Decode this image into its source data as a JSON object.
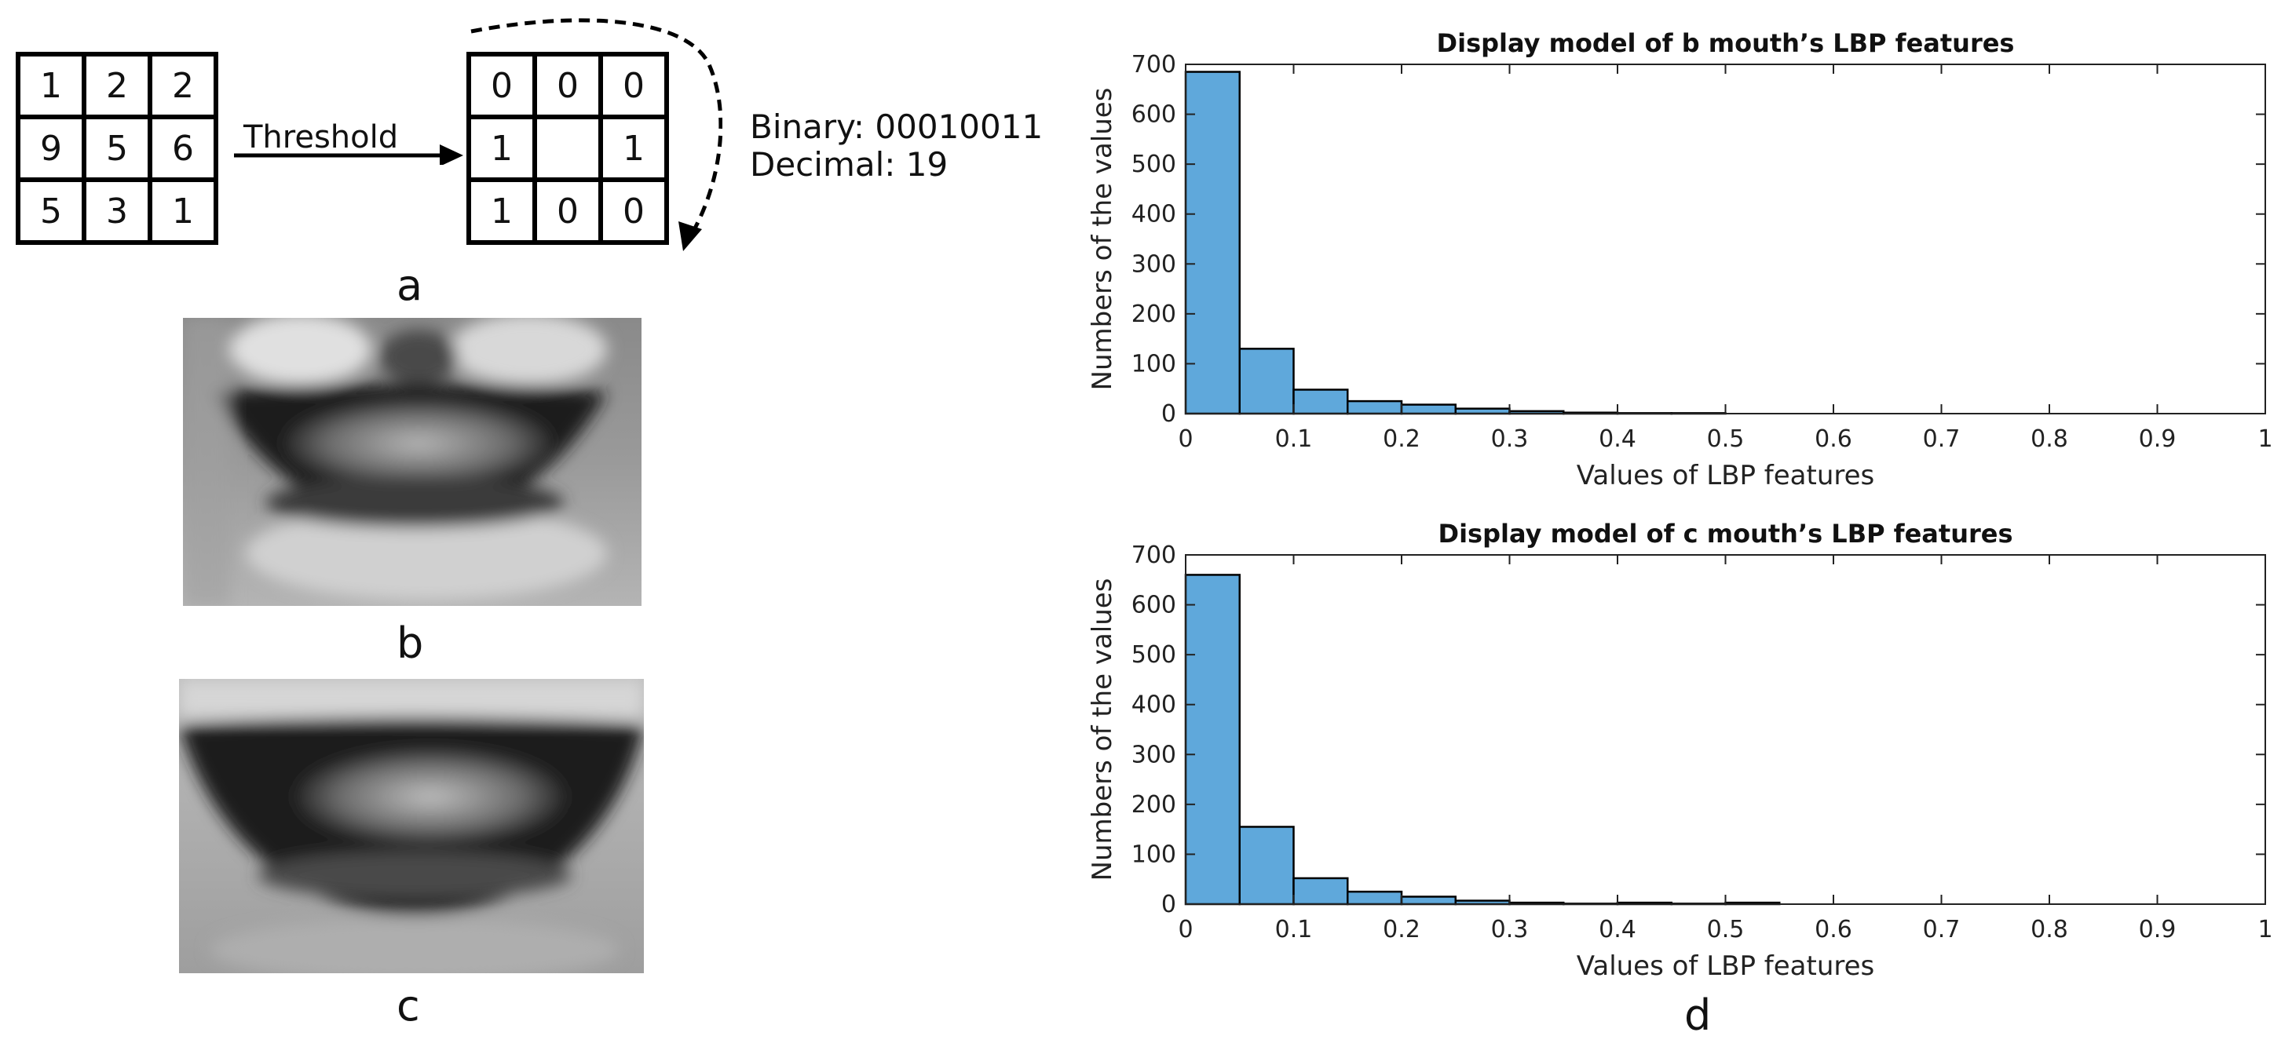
{
  "panel_a": {
    "input_grid": [
      "1",
      "2",
      "2",
      "9",
      "5",
      "6",
      "5",
      "3",
      "1"
    ],
    "threshold_grid": [
      "0",
      "0",
      "0",
      "1",
      "",
      "1",
      "1",
      "0",
      "0"
    ],
    "arrow_label": "Threshold",
    "binary_text": "Binary: 00010011",
    "decimal_text": "Decimal: 19",
    "label": "a"
  },
  "panel_b": {
    "label": "b"
  },
  "panel_c": {
    "label": "c"
  },
  "panel_d": {
    "label": "d"
  },
  "colors": {
    "bar_fill": "#5fa8db",
    "bar_edge": "#000000"
  },
  "chart_data": [
    {
      "type": "bar",
      "title": "Display model of b mouth’s LBP features",
      "xlabel": "Values of LBP features",
      "ylabel": "Numbers of the values",
      "xlim": [
        0,
        1
      ],
      "ylim": [
        0,
        700
      ],
      "xticks": [
        "0",
        "0.1",
        "0.2",
        "0.3",
        "0.4",
        "0.5",
        "0.6",
        "0.7",
        "0.8",
        "0.9",
        "1"
      ],
      "yticks": [
        "0",
        "100",
        "200",
        "300",
        "400",
        "500",
        "600",
        "700"
      ],
      "bin_edges": [
        0,
        0.05,
        0.1,
        0.15,
        0.2,
        0.25,
        0.3,
        0.35,
        0.4,
        0.45,
        0.5,
        0.55,
        0.6,
        0.65,
        0.7,
        0.75,
        0.8,
        0.85,
        0.9,
        0.95,
        1
      ],
      "values": [
        685,
        130,
        48,
        25,
        18,
        10,
        5,
        2,
        1,
        1,
        0,
        0,
        0,
        0,
        0,
        0,
        0,
        0,
        0,
        0
      ],
      "grid": false
    },
    {
      "type": "bar",
      "title": "Display model of c mouth’s LBP features",
      "xlabel": "Values of LBP features",
      "ylabel": "Numbers of the values",
      "xlim": [
        0,
        1
      ],
      "ylim": [
        0,
        700
      ],
      "xticks": [
        "0",
        "0.1",
        "0.2",
        "0.3",
        "0.4",
        "0.5",
        "0.6",
        "0.7",
        "0.8",
        "0.9",
        "1"
      ],
      "yticks": [
        "0",
        "100",
        "200",
        "300",
        "400",
        "500",
        "600",
        "700"
      ],
      "bin_edges": [
        0,
        0.05,
        0.1,
        0.15,
        0.2,
        0.25,
        0.3,
        0.35,
        0.4,
        0.45,
        0.5,
        0.55,
        0.6,
        0.65,
        0.7,
        0.75,
        0.8,
        0.85,
        0.9,
        0.95,
        1
      ],
      "values": [
        660,
        155,
        52,
        25,
        15,
        7,
        3,
        1,
        3,
        1,
        3,
        0,
        0,
        0,
        0,
        0,
        0,
        0,
        0,
        0
      ],
      "grid": false
    }
  ]
}
